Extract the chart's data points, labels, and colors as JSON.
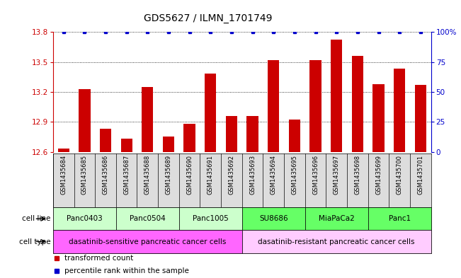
{
  "title": "GDS5627 / ILMN_1701749",
  "samples": [
    "GSM1435684",
    "GSM1435685",
    "GSM1435686",
    "GSM1435687",
    "GSM1435688",
    "GSM1435689",
    "GSM1435690",
    "GSM1435691",
    "GSM1435692",
    "GSM1435693",
    "GSM1435694",
    "GSM1435695",
    "GSM1435696",
    "GSM1435697",
    "GSM1435698",
    "GSM1435699",
    "GSM1435700",
    "GSM1435701"
  ],
  "bar_values": [
    12.63,
    13.23,
    12.83,
    12.73,
    13.25,
    12.75,
    12.88,
    13.38,
    12.96,
    12.96,
    13.52,
    12.92,
    13.52,
    13.72,
    13.56,
    13.28,
    13.43,
    13.27
  ],
  "percentile_values": [
    100,
    100,
    100,
    100,
    100,
    100,
    100,
    100,
    100,
    100,
    100,
    100,
    100,
    100,
    100,
    100,
    100,
    100
  ],
  "bar_color": "#cc0000",
  "percentile_color": "#0000cc",
  "ymin": 12.6,
  "ymax": 13.8,
  "yticks": [
    12.6,
    12.9,
    13.2,
    13.5,
    13.8
  ],
  "right_yticks": [
    0,
    25,
    50,
    75,
    100
  ],
  "cell_line_groups": [
    {
      "label": "Panc0403",
      "start": 0,
      "end": 3,
      "color": "#ccffcc"
    },
    {
      "label": "Panc0504",
      "start": 3,
      "end": 6,
      "color": "#ccffcc"
    },
    {
      "label": "Panc1005",
      "start": 6,
      "end": 9,
      "color": "#ccffcc"
    },
    {
      "label": "SU8686",
      "start": 9,
      "end": 12,
      "color": "#66ff66"
    },
    {
      "label": "MiaPaCa2",
      "start": 12,
      "end": 15,
      "color": "#66ff66"
    },
    {
      "label": "Panc1",
      "start": 15,
      "end": 18,
      "color": "#66ff66"
    }
  ],
  "cell_type_groups": [
    {
      "label": "dasatinib-sensitive pancreatic cancer cells",
      "start": 0,
      "end": 9,
      "color": "#ff66ff"
    },
    {
      "label": "dasatinib-resistant pancreatic cancer cells",
      "start": 9,
      "end": 18,
      "color": "#ffccff"
    }
  ],
  "legend_items": [
    {
      "label": "transformed count",
      "color": "#cc0000"
    },
    {
      "label": "percentile rank within the sample",
      "color": "#0000cc"
    }
  ],
  "bar_width": 0.55,
  "sample_fontsize": 6.0,
  "title_fontsize": 10,
  "axis_fontsize": 7.5,
  "cell_fontsize": 7.5,
  "legend_fontsize": 7.5,
  "left_color": "#cc0000",
  "right_color": "#0000cc",
  "bg_color": "#dddddd"
}
